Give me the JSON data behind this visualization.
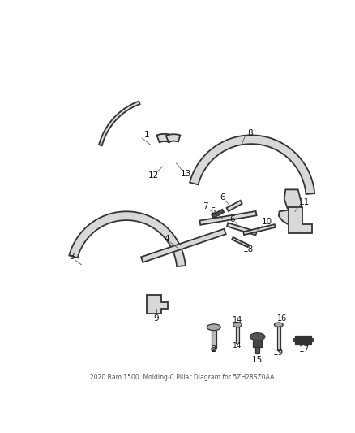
{
  "title_line1": "2020 Ram 1500",
  "title_line2": "Molding-C Pillar Diagram for 5ZH28SZ0AA",
  "background_color": "#ffffff",
  "fig_width": 4.38,
  "fig_height": 5.33,
  "dpi": 100,
  "line_color": "#333333",
  "part_fill_light": "#d8d8d8",
  "part_fill_dark": "#555555",
  "part_edge": "#333333"
}
